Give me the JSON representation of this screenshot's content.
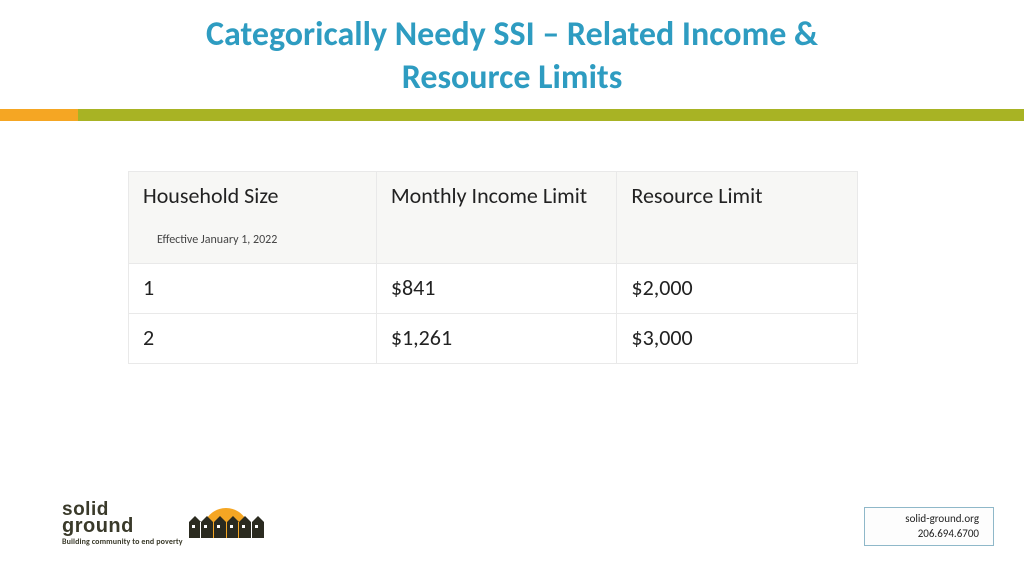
{
  "title_line1": "Categorically Needy SSI – Related Income &",
  "title_line2": "Resource Limits",
  "colors": {
    "title": "#2e9cc1",
    "divider_accent": "#f5a623",
    "divider_main": "#a8b324",
    "border": "#e9e9e9",
    "header_bg": "#f7f7f5",
    "contact_border": "#8fb8c9"
  },
  "table": {
    "columns": [
      {
        "label": "Household Size",
        "sublabel": "Effective January 1, 2022"
      },
      {
        "label": "Monthly Income Limit"
      },
      {
        "label": "Resource Limit"
      }
    ],
    "rows": [
      [
        "1",
        "$841",
        "$2,000"
      ],
      [
        "2",
        "$1,261",
        "$3,000"
      ]
    ]
  },
  "logo": {
    "word_top": "solid",
    "word_bottom": "ground",
    "tagline": "Building community to end poverty"
  },
  "contact": {
    "website": "solid-ground.org",
    "phone": "206.694.6700"
  }
}
